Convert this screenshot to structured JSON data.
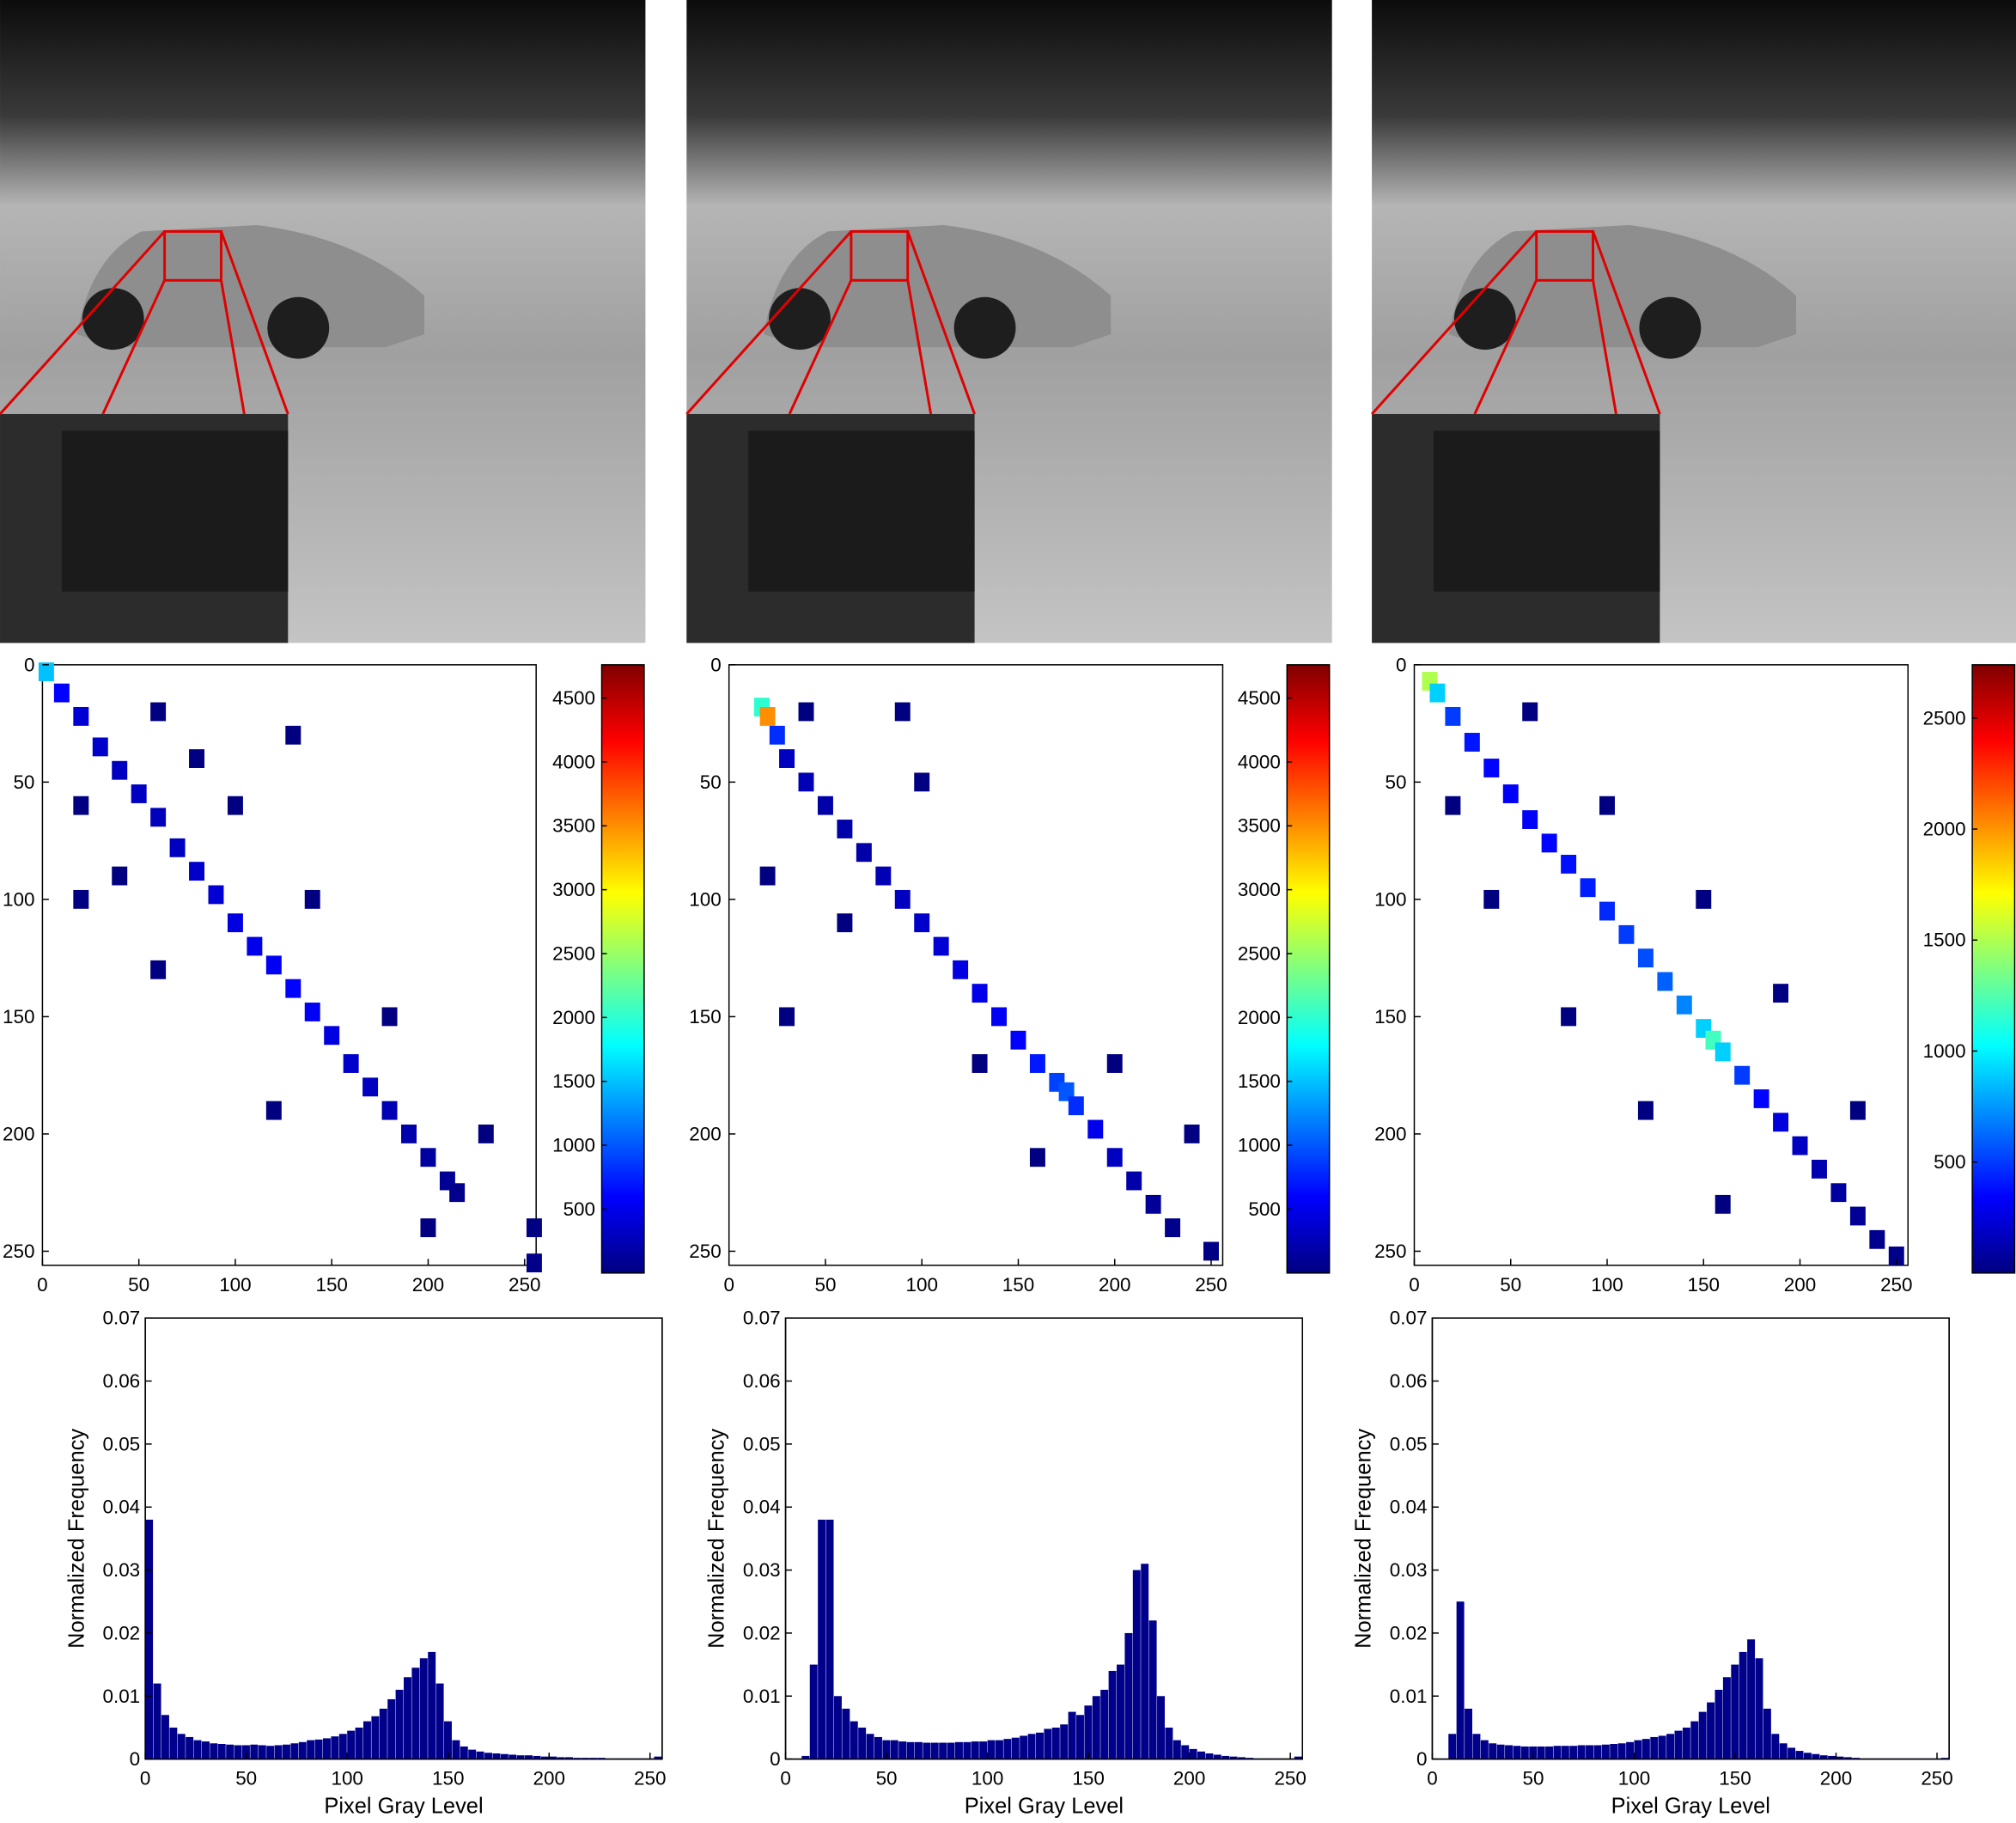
{
  "chart_data": [
    {
      "type": "heatmap",
      "colormap": "jet",
      "y_inverted": true,
      "x": [
        2,
        10,
        20,
        30,
        40,
        50,
        60,
        70,
        80,
        90,
        100,
        110,
        120,
        130,
        140,
        150,
        160,
        170,
        180,
        190,
        200,
        210,
        215,
        20,
        60,
        80,
        40,
        100,
        60,
        140,
        120,
        180,
        200,
        230,
        255,
        255,
        130,
        20
      ],
      "y": [
        3,
        12,
        22,
        35,
        45,
        55,
        65,
        78,
        88,
        98,
        110,
        120,
        128,
        138,
        148,
        158,
        170,
        180,
        190,
        200,
        210,
        220,
        225,
        60,
        20,
        40,
        90,
        60,
        130,
        100,
        190,
        150,
        240,
        200,
        255,
        240,
        30,
        100
      ],
      "values": [
        1500,
        600,
        400,
        350,
        300,
        300,
        280,
        300,
        350,
        400,
        450,
        500,
        550,
        600,
        550,
        450,
        350,
        300,
        250,
        200,
        150,
        100,
        60,
        5,
        5,
        8,
        8,
        6,
        6,
        5,
        4,
        5,
        3,
        3,
        40,
        10,
        2,
        2
      ],
      "xlim": [
        0,
        256
      ],
      "ylim": [
        0,
        256
      ],
      "xticks": [
        0,
        50,
        100,
        150,
        200,
        250
      ],
      "yticks": [
        0,
        50,
        100,
        150,
        200,
        250
      ],
      "clim": [
        0,
        4760
      ],
      "cticks": [
        500,
        1000,
        1500,
        2000,
        2500,
        3000,
        3500,
        4000,
        4500
      ]
    },
    {
      "type": "heatmap",
      "colormap": "jet",
      "y_inverted": true,
      "x": [
        17,
        20,
        25,
        30,
        40,
        50,
        60,
        70,
        80,
        90,
        100,
        110,
        120,
        130,
        140,
        150,
        160,
        170,
        175,
        180,
        190,
        200,
        210,
        220,
        230,
        40,
        90,
        20,
        60,
        100,
        130,
        200,
        160,
        250,
        240,
        30
      ],
      "y": [
        18,
        22,
        30,
        40,
        50,
        60,
        70,
        80,
        90,
        100,
        110,
        120,
        130,
        140,
        150,
        160,
        170,
        178,
        182,
        188,
        198,
        210,
        220,
        230,
        240,
        20,
        20,
        90,
        110,
        50,
        170,
        170,
        210,
        250,
        200,
        150
      ],
      "values": [
        2000,
        3500,
        800,
        300,
        250,
        200,
        200,
        200,
        250,
        300,
        350,
        400,
        450,
        500,
        550,
        600,
        700,
        900,
        1000,
        800,
        500,
        300,
        200,
        120,
        60,
        5,
        4,
        5,
        4,
        3,
        4,
        5,
        3,
        30,
        3,
        2
      ],
      "xlim": [
        0,
        256
      ],
      "ylim": [
        0,
        256
      ],
      "xticks": [
        0,
        50,
        100,
        150,
        200,
        250
      ],
      "yticks": [
        0,
        50,
        100,
        150,
        200,
        250
      ],
      "clim": [
        0,
        4760
      ],
      "cticks": [
        500,
        1000,
        1500,
        2000,
        2500,
        3000,
        3500,
        4000,
        4500
      ]
    },
    {
      "type": "heatmap",
      "colormap": "jet",
      "y_inverted": true,
      "x": [
        8,
        12,
        20,
        30,
        40,
        50,
        60,
        70,
        80,
        90,
        100,
        110,
        120,
        130,
        140,
        150,
        155,
        160,
        170,
        180,
        190,
        200,
        210,
        220,
        230,
        240,
        250,
        20,
        60,
        40,
        100,
        80,
        150,
        120,
        190,
        230,
        160
      ],
      "y": [
        7,
        12,
        22,
        33,
        44,
        55,
        66,
        76,
        85,
        95,
        105,
        115,
        125,
        135,
        145,
        155,
        160,
        165,
        175,
        185,
        195,
        205,
        215,
        225,
        235,
        245,
        252,
        60,
        20,
        100,
        60,
        150,
        100,
        190,
        140,
        190,
        230
      ],
      "values": [
        1500,
        900,
        500,
        400,
        350,
        320,
        330,
        350,
        380,
        420,
        450,
        500,
        550,
        600,
        700,
        900,
        1200,
        900,
        500,
        350,
        250,
        180,
        130,
        90,
        60,
        40,
        30,
        4,
        4,
        4,
        4,
        3,
        3,
        3,
        3,
        2,
        2
      ],
      "xlim": [
        0,
        256
      ],
      "ylim": [
        0,
        256
      ],
      "xticks": [
        0,
        50,
        100,
        150,
        200,
        250
      ],
      "yticks": [
        0,
        50,
        100,
        150,
        200,
        250
      ],
      "clim": [
        0,
        2740
      ],
      "cticks": [
        500,
        1000,
        1500,
        2000,
        2500
      ]
    },
    {
      "type": "histogram",
      "color": "#00008b",
      "xlabel": "Pixel Gray Level",
      "ylabel": "Normalized Frequency",
      "bins": [
        0,
        4,
        8,
        12,
        16,
        20,
        24,
        28,
        32,
        36,
        40,
        44,
        48,
        52,
        56,
        60,
        64,
        68,
        72,
        76,
        80,
        84,
        88,
        92,
        96,
        100,
        104,
        108,
        112,
        116,
        120,
        124,
        128,
        132,
        136,
        140,
        144,
        148,
        152,
        156,
        160,
        164,
        168,
        172,
        176,
        180,
        184,
        188,
        192,
        196,
        200,
        204,
        208,
        212,
        216,
        220,
        224,
        228,
        232,
        236,
        240,
        244,
        248,
        252,
        256
      ],
      "values": [
        0.038,
        0.012,
        0.007,
        0.005,
        0.004,
        0.0035,
        0.003,
        0.0028,
        0.0025,
        0.0024,
        0.0023,
        0.0022,
        0.0022,
        0.0023,
        0.0022,
        0.0021,
        0.0022,
        0.0023,
        0.0025,
        0.0027,
        0.003,
        0.0031,
        0.0033,
        0.0036,
        0.004,
        0.0045,
        0.005,
        0.006,
        0.0068,
        0.008,
        0.0095,
        0.011,
        0.013,
        0.0145,
        0.016,
        0.017,
        0.012,
        0.006,
        0.003,
        0.002,
        0.0015,
        0.0012,
        0.001,
        0.0009,
        0.0008,
        0.0007,
        0.0006,
        0.0006,
        0.0005,
        0.0004,
        0.0004,
        0.0003,
        0.0003,
        0.0002,
        0.0002,
        0.0002,
        0.0002,
        0.0001,
        0.0001,
        0.0001,
        0.0001,
        0.0001,
        0.0001,
        0.0004
      ],
      "xlim": [
        0,
        256
      ],
      "ylim": [
        0,
        0.07
      ],
      "xticks": [
        0,
        50,
        100,
        150,
        200,
        250
      ],
      "yticks": [
        0,
        0.01,
        0.02,
        0.03,
        0.04,
        0.05,
        0.06,
        0.07
      ]
    },
    {
      "type": "histogram",
      "color": "#00008b",
      "xlabel": "Pixel Gray Level",
      "ylabel": "Normalized Frequency",
      "bins": [
        0,
        4,
        8,
        12,
        16,
        20,
        24,
        28,
        32,
        36,
        40,
        44,
        48,
        52,
        56,
        60,
        64,
        68,
        72,
        76,
        80,
        84,
        88,
        92,
        96,
        100,
        104,
        108,
        112,
        116,
        120,
        124,
        128,
        132,
        136,
        140,
        144,
        148,
        152,
        156,
        160,
        164,
        168,
        172,
        176,
        180,
        184,
        188,
        192,
        196,
        200,
        204,
        208,
        212,
        216,
        220,
        224,
        228,
        232,
        236,
        240,
        244,
        248,
        252,
        256
      ],
      "values": [
        0,
        0,
        0.0005,
        0.015,
        0.038,
        0.038,
        0.01,
        0.008,
        0.006,
        0.005,
        0.004,
        0.0035,
        0.003,
        0.003,
        0.0028,
        0.0027,
        0.0027,
        0.0026,
        0.0026,
        0.0026,
        0.0026,
        0.0027,
        0.0027,
        0.0028,
        0.0028,
        0.003,
        0.003,
        0.0032,
        0.0034,
        0.0037,
        0.004,
        0.0042,
        0.0048,
        0.005,
        0.0055,
        0.0075,
        0.007,
        0.0085,
        0.01,
        0.011,
        0.014,
        0.015,
        0.02,
        0.03,
        0.031,
        0.022,
        0.01,
        0.005,
        0.003,
        0.0022,
        0.0016,
        0.0012,
        0.0009,
        0.0007,
        0.0005,
        0.0004,
        0.0003,
        0.0002,
        0.0001,
        0.0001,
        0.0001,
        0.0001,
        0.0001,
        0.0004
      ],
      "xlim": [
        0,
        256
      ],
      "ylim": [
        0,
        0.07
      ],
      "xticks": [
        0,
        50,
        100,
        150,
        200,
        250
      ],
      "yticks": [
        0,
        0.01,
        0.02,
        0.03,
        0.04,
        0.05,
        0.06,
        0.07
      ]
    },
    {
      "type": "histogram",
      "color": "#00008b",
      "xlabel": "Pixel Gray Level",
      "ylabel": "Normalized Frequency",
      "bins": [
        0,
        4,
        8,
        12,
        16,
        20,
        24,
        28,
        32,
        36,
        40,
        44,
        48,
        52,
        56,
        60,
        64,
        68,
        72,
        76,
        80,
        84,
        88,
        92,
        96,
        100,
        104,
        108,
        112,
        116,
        120,
        124,
        128,
        132,
        136,
        140,
        144,
        148,
        152,
        156,
        160,
        164,
        168,
        172,
        176,
        180,
        184,
        188,
        192,
        196,
        200,
        204,
        208,
        212,
        216,
        220,
        224,
        228,
        232,
        236,
        240,
        244,
        248,
        252,
        256
      ],
      "values": [
        0,
        0,
        0.004,
        0.025,
        0.008,
        0.004,
        0.003,
        0.0025,
        0.0023,
        0.0022,
        0.0021,
        0.002,
        0.002,
        0.002,
        0.002,
        0.0021,
        0.0021,
        0.0021,
        0.0022,
        0.0022,
        0.0022,
        0.0023,
        0.0024,
        0.0025,
        0.0027,
        0.003,
        0.0032,
        0.0035,
        0.0037,
        0.004,
        0.0045,
        0.005,
        0.006,
        0.0075,
        0.009,
        0.011,
        0.013,
        0.015,
        0.017,
        0.019,
        0.016,
        0.008,
        0.004,
        0.0025,
        0.0018,
        0.0013,
        0.001,
        0.0008,
        0.0006,
        0.0005,
        0.0004,
        0.0003,
        0.0002,
        0.0001,
        0.0001,
        0.0001,
        0.0001,
        0.0001,
        0.0001,
        0.0001,
        0.0001,
        0.0001,
        0.0001,
        0.0002
      ],
      "xlim": [
        0,
        256
      ],
      "ylim": [
        0,
        0.07
      ],
      "xticks": [
        0,
        50,
        100,
        150,
        200,
        250
      ],
      "yticks": [
        0,
        0.01,
        0.02,
        0.03,
        0.04,
        0.05,
        0.06,
        0.07
      ]
    }
  ]
}
